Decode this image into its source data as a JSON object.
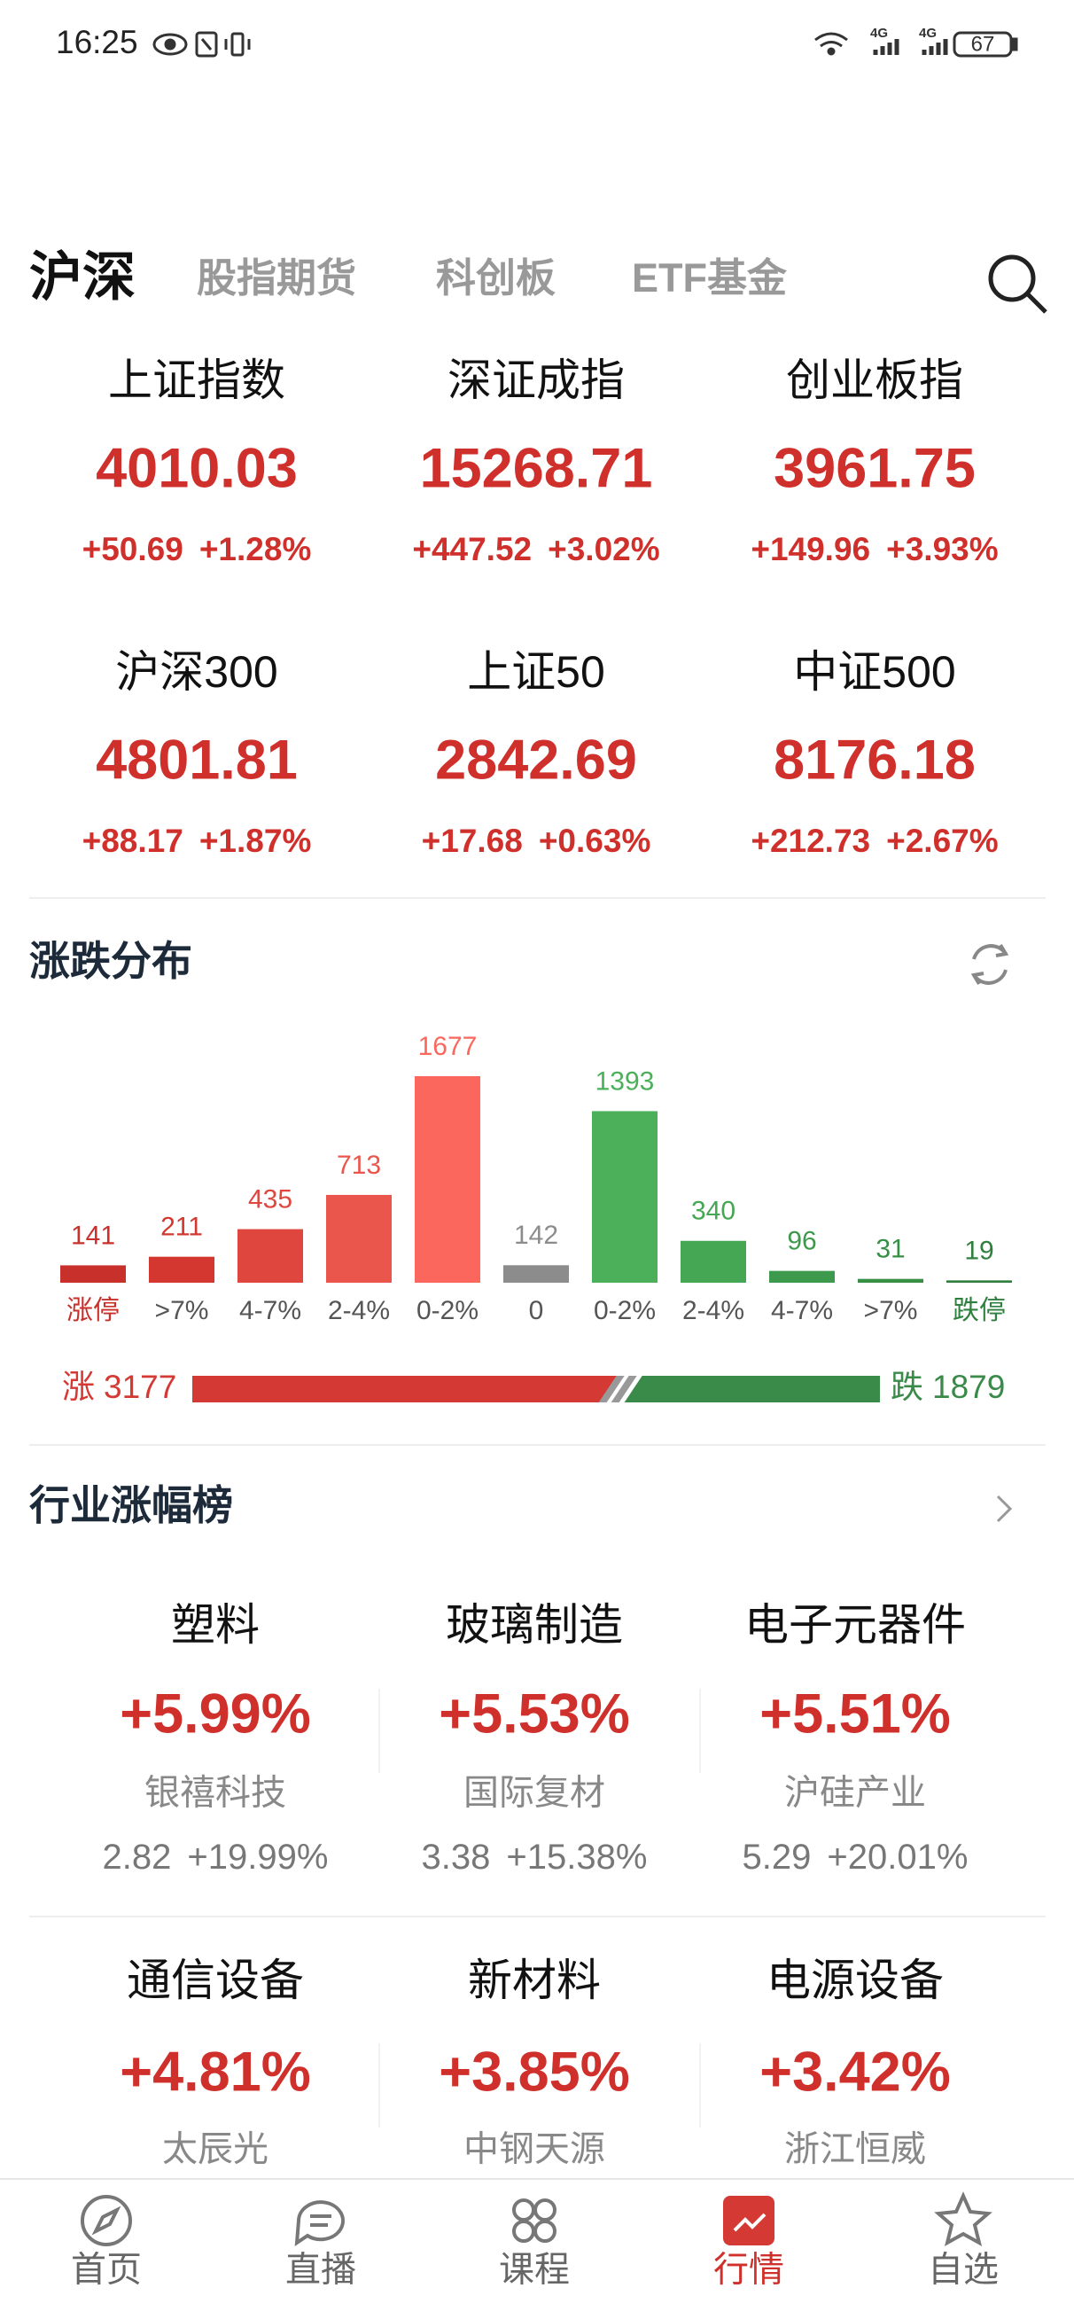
{
  "status_bar": {
    "time": "16:25",
    "network": [
      "4G",
      "4G"
    ],
    "battery": "67"
  },
  "tabs": [
    "沪深",
    "股指期货",
    "科创板",
    "ETF基金"
  ],
  "active_tab": 0,
  "indices": [
    {
      "name": "上证指数",
      "value": "4010.03",
      "change": "+50.69",
      "pct": "+1.28%"
    },
    {
      "name": "深证成指",
      "value": "15268.71",
      "change": "+447.52",
      "pct": "+3.02%"
    },
    {
      "name": "创业板指",
      "value": "3961.75",
      "change": "+149.96",
      "pct": "+3.93%"
    },
    {
      "name": "沪深300",
      "value": "4801.81",
      "change": "+88.17",
      "pct": "+1.87%"
    },
    {
      "name": "上证50",
      "value": "2842.69",
      "change": "+17.68",
      "pct": "+0.63%"
    },
    {
      "name": "中证500",
      "value": "8176.18",
      "change": "+212.73",
      "pct": "+2.67%"
    }
  ],
  "distribution": {
    "title": "涨跌分布",
    "categories": [
      "涨停",
      ">7%",
      "4-7%",
      "2-4%",
      "0-2%",
      "0",
      "0-2%",
      "2-4%",
      "4-7%",
      ">7%",
      "跌停"
    ],
    "values": [
      141,
      211,
      435,
      713,
      1677,
      142,
      1393,
      340,
      96,
      31,
      19
    ],
    "colors": [
      "#c8302b",
      "#d3372f",
      "#de463e",
      "#ea564c",
      "#fb675c",
      "#8c8c8c",
      "#4caf5a",
      "#45a653",
      "#3d9a4c",
      "#378f46",
      "#2f7f3e"
    ],
    "rise_label": "涨",
    "rise": 3177,
    "fall_label": "跌",
    "fall": 1879
  },
  "industry": {
    "title": "行业涨幅榜",
    "items": [
      {
        "name": "塑料",
        "pct": "+5.99%",
        "stock": "银禧科技",
        "price": "2.82",
        "stock_pct": "+19.99%"
      },
      {
        "name": "玻璃制造",
        "pct": "+5.53%",
        "stock": "国际复材",
        "price": "3.38",
        "stock_pct": "+15.38%"
      },
      {
        "name": "电子元器件",
        "pct": "+5.51%",
        "stock": "沪硅产业",
        "price": "5.29",
        "stock_pct": "+20.01%"
      },
      {
        "name": "通信设备",
        "pct": "+4.81%",
        "stock": "太辰光"
      },
      {
        "name": "新材料",
        "pct": "+3.85%",
        "stock": "中钢天源"
      },
      {
        "name": "电源设备",
        "pct": "+3.42%",
        "stock": "浙江恒威"
      }
    ]
  },
  "nav": {
    "items": [
      "首页",
      "直播",
      "课程",
      "行情",
      "自选"
    ],
    "active": 3
  }
}
